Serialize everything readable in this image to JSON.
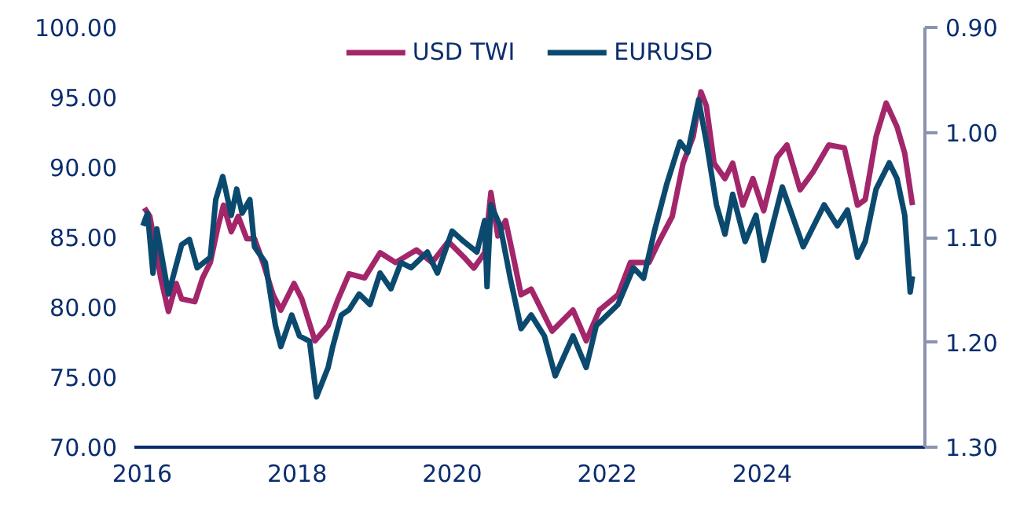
{
  "chart_data": {
    "type": "line",
    "legend": "top",
    "grid": false,
    "line_style": "solid",
    "marker": "none",
    "xlim": [
      2015.9,
      2026.1
    ],
    "xticks": [
      2016,
      2018,
      2020,
      2022,
      2024
    ],
    "ylim": [
      70,
      100
    ],
    "yticks": [
      {
        "value": 70,
        "label": "70.00"
      },
      {
        "value": 75,
        "label": "75.00"
      },
      {
        "value": 80,
        "label": "80.00"
      },
      {
        "value": 85,
        "label": "85.00"
      },
      {
        "value": 90,
        "label": "90.00"
      },
      {
        "value": 95,
        "label": "95.00"
      },
      {
        "value": 100,
        "label": "100.00"
      }
    ],
    "y2lim": [
      1.3,
      0.9
    ],
    "y2ticks": [
      {
        "value": 0.9,
        "label": "0.90"
      },
      {
        "value": 1.0,
        "label": "1.00"
      },
      {
        "value": 1.1,
        "label": "1.10"
      },
      {
        "value": 1.2,
        "label": "1.20"
      },
      {
        "value": 1.3,
        "label": "1.30"
      }
    ],
    "series": [
      {
        "name": "USD TWI",
        "color": "#a3266b",
        "x": [
          2016.03,
          2016.1,
          2016.24,
          2016.34,
          2016.44,
          2016.51,
          2016.68,
          2016.78,
          2016.88,
          2016.98,
          2017.05,
          2017.15,
          2017.24,
          2017.35,
          2017.45,
          2017.56,
          2017.69,
          2017.79,
          2017.96,
          2018.06,
          2018.23,
          2018.4,
          2018.53,
          2018.67,
          2018.87,
          2019.07,
          2019.27,
          2019.54,
          2019.74,
          2019.95,
          2020.15,
          2020.28,
          2020.42,
          2020.5,
          2020.59,
          2020.69,
          2020.79,
          2020.89,
          2021.02,
          2021.29,
          2021.56,
          2021.73,
          2021.9,
          2022.14,
          2022.3,
          2022.54,
          2022.67,
          2022.84,
          2022.98,
          2023.11,
          2023.21,
          2023.28,
          2023.38,
          2023.52,
          2023.62,
          2023.75,
          2023.88,
          2024.02,
          2024.19,
          2024.32,
          2024.49,
          2024.66,
          2024.86,
          2025.06,
          2025.23,
          2025.33,
          2025.47,
          2025.6,
          2025.74,
          2025.84,
          2025.94
        ],
        "values": [
          87.1,
          86.5,
          82.1,
          79.7,
          81.7,
          80.6,
          80.4,
          82.1,
          83.2,
          85.8,
          87.3,
          85.4,
          86.5,
          84.9,
          84.9,
          83.2,
          80.9,
          79.8,
          81.7,
          80.6,
          77.6,
          78.7,
          80.6,
          82.4,
          82.1,
          83.9,
          83.2,
          84.1,
          83.2,
          84.7,
          83.6,
          82.8,
          83.9,
          88.2,
          85.1,
          86.2,
          83.6,
          80.9,
          81.3,
          78.3,
          79.8,
          77.6,
          79.8,
          80.9,
          83.2,
          83.2,
          84.7,
          86.5,
          90.3,
          92.2,
          95.4,
          94.4,
          90.3,
          89.2,
          90.3,
          87.3,
          89.2,
          86.9,
          90.7,
          91.6,
          88.4,
          89.7,
          91.6,
          91.4,
          87.3,
          87.7,
          92.2,
          94.6,
          92.9,
          91.0,
          87.3
        ]
      },
      {
        "name": "EURUSD",
        "color": "#0b4a6e",
        "axis": "y2",
        "x": [
          2016.01,
          2016.07,
          2016.14,
          2016.19,
          2016.34,
          2016.51,
          2016.61,
          2016.71,
          2016.88,
          2016.95,
          2017.04,
          2017.15,
          2017.22,
          2017.29,
          2017.39,
          2017.45,
          2017.59,
          2017.72,
          2017.79,
          2017.93,
          2018.03,
          2018.16,
          2018.25,
          2018.4,
          2018.46,
          2018.57,
          2018.67,
          2018.8,
          2018.94,
          2019.07,
          2019.21,
          2019.34,
          2019.47,
          2019.68,
          2019.81,
          2020.0,
          2020.15,
          2020.32,
          2020.42,
          2020.45,
          2020.5,
          2020.62,
          2020.75,
          2020.89,
          2021.02,
          2021.19,
          2021.33,
          2021.56,
          2021.73,
          2021.86,
          2022.14,
          2022.34,
          2022.47,
          2022.61,
          2022.77,
          2022.94,
          2023.04,
          2023.18,
          2023.28,
          2023.41,
          2023.52,
          2023.62,
          2023.78,
          2023.92,
          2024.02,
          2024.26,
          2024.53,
          2024.8,
          2024.97,
          2025.1,
          2025.23,
          2025.33,
          2025.47,
          2025.64,
          2025.74,
          2025.84,
          2025.91,
          2025.94
        ],
        "values": [
          1.089,
          1.077,
          1.134,
          1.092,
          1.154,
          1.107,
          1.102,
          1.129,
          1.119,
          1.064,
          1.042,
          1.079,
          1.054,
          1.077,
          1.064,
          1.109,
          1.124,
          1.184,
          1.204,
          1.174,
          1.194,
          1.199,
          1.252,
          1.224,
          1.204,
          1.174,
          1.169,
          1.154,
          1.164,
          1.134,
          1.149,
          1.124,
          1.129,
          1.114,
          1.134,
          1.094,
          1.104,
          1.114,
          1.084,
          1.147,
          1.069,
          1.089,
          1.139,
          1.187,
          1.174,
          1.194,
          1.232,
          1.194,
          1.224,
          1.184,
          1.164,
          1.129,
          1.139,
          1.094,
          1.049,
          1.009,
          1.019,
          0.969,
          1.009,
          1.069,
          1.097,
          1.059,
          1.104,
          1.079,
          1.122,
          1.052,
          1.109,
          1.069,
          1.089,
          1.074,
          1.119,
          1.104,
          1.054,
          1.029,
          1.044,
          1.079,
          1.152,
          1.137
        ]
      }
    ]
  }
}
